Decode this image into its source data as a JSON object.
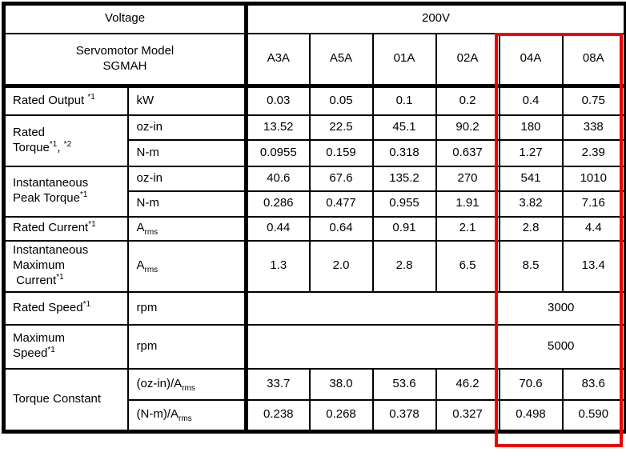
{
  "table": {
    "voltage_label": "Voltage",
    "voltage_value": "200V",
    "model_header": [
      {
        "t": "Servomotor Model"
      },
      {
        "br": true
      },
      {
        "t": "SGMAH"
      }
    ],
    "models": [
      "A3A",
      "A5A",
      "01A",
      "02A",
      "04A",
      "08A"
    ],
    "highlight": {
      "color": "#ee0000",
      "highlighted_models": [
        "04A",
        "08A"
      ]
    },
    "rows": [
      {
        "label": [
          {
            "t": "Rated Output "
          },
          {
            "t": "*1",
            "s": "sup"
          }
        ],
        "unit": [
          {
            "t": "kW"
          }
        ],
        "values": [
          "0.03",
          "0.05",
          "0.1",
          "0.2",
          "0.4",
          "0.75"
        ]
      },
      {
        "label": [
          {
            "t": "Rated"
          },
          {
            "br": true
          },
          {
            "t": "Torque"
          },
          {
            "t": "*1",
            "s": "sup"
          },
          {
            "t": ", "
          },
          {
            "t": "*2",
            "s": "sup"
          }
        ],
        "unit": [
          {
            "t": "oz-in"
          }
        ],
        "values": [
          "13.52",
          "22.5",
          "45.1",
          "90.2",
          "180",
          "338"
        ]
      },
      {
        "unit": [
          {
            "t": "N-m"
          }
        ],
        "values": [
          "0.0955",
          "0.159",
          "0.318",
          "0.637",
          "1.27",
          "2.39"
        ]
      },
      {
        "label": [
          {
            "t": "Instantaneous"
          },
          {
            "br": true
          },
          {
            "t": "Peak Torque"
          },
          {
            "t": "*1",
            "s": "sup"
          }
        ],
        "unit": [
          {
            "t": "oz-in"
          }
        ],
        "values": [
          "40.6",
          "67.6",
          "135.2",
          "270",
          "541",
          "1010"
        ]
      },
      {
        "unit": [
          {
            "t": "N-m"
          }
        ],
        "values": [
          "0.286",
          "0.477",
          "0.955",
          "1.91",
          "3.82",
          "7.16"
        ]
      },
      {
        "label": [
          {
            "t": "Rated Current"
          },
          {
            "t": "*1",
            "s": "sup"
          }
        ],
        "unit": [
          {
            "t": "A"
          },
          {
            "t": "rms",
            "s": "sub"
          }
        ],
        "values": [
          "0.44",
          "0.64",
          "0.91",
          "2.1",
          "2.8",
          "4.4"
        ]
      },
      {
        "label": [
          {
            "t": "Instantaneous"
          },
          {
            "br": true
          },
          {
            "t": "Maximum"
          },
          {
            "br": true
          },
          {
            "t": " Current"
          },
          {
            "t": "*1",
            "s": "sup"
          }
        ],
        "unit": [
          {
            "t": "A"
          },
          {
            "t": "rms",
            "s": "sub"
          }
        ],
        "values": [
          "1.3",
          "2.0",
          "2.8",
          "6.5",
          "8.5",
          "13.4"
        ]
      },
      {
        "label": [
          {
            "t": "Rated Speed"
          },
          {
            "t": "*1",
            "s": "sup"
          }
        ],
        "unit": [
          {
            "t": "rpm"
          }
        ],
        "merged_value": "3000"
      },
      {
        "label": [
          {
            "t": "Maximum"
          },
          {
            "br": true
          },
          {
            "t": "Speed"
          },
          {
            "t": "*1",
            "s": "sup"
          }
        ],
        "unit": [
          {
            "t": "rpm"
          }
        ],
        "merged_value": "5000"
      },
      {
        "label": [
          {
            "t": "Torque Constant"
          }
        ],
        "unit": [
          {
            "t": "(oz-in)/A"
          },
          {
            "t": "rms",
            "s": "sub"
          }
        ],
        "values": [
          "33.7",
          "38.0",
          "53.6",
          "46.2",
          "70.6",
          "83.6"
        ]
      },
      {
        "unit": [
          {
            "t": "(N-m)/A"
          },
          {
            "t": "rms",
            "s": "sub"
          }
        ],
        "values": [
          "0.238",
          "0.268",
          "0.378",
          "0.327",
          "0.498",
          "0.590"
        ]
      }
    ]
  }
}
